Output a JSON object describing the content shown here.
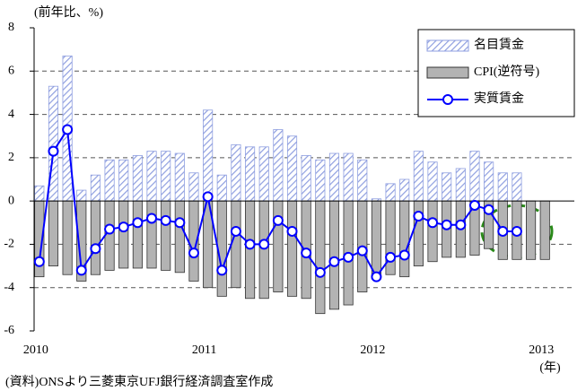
{
  "chart_data": {
    "type": "bar_line",
    "y_label": "(前年比、%)",
    "x_unit": "(年)",
    "source": "(資料)ONSより三菱東京UFJ銀行経済調査室作成",
    "categories": [
      "2010",
      null,
      null,
      null,
      null,
      null,
      null,
      null,
      null,
      null,
      null,
      null,
      "2011",
      null,
      null,
      null,
      null,
      null,
      null,
      null,
      null,
      null,
      null,
      null,
      "2012",
      null,
      null,
      null,
      null,
      null,
      null,
      null,
      null,
      null,
      null,
      null,
      "2013"
    ],
    "series": [
      {
        "name": "名目賃金",
        "color": "#8f9fe0",
        "kind": "bar",
        "values": [
          0.7,
          5.3,
          6.7,
          0.5,
          1.2,
          1.9,
          1.9,
          2.1,
          2.3,
          2.3,
          2.2,
          1.3,
          4.2,
          1.2,
          2.6,
          2.5,
          2.5,
          3.3,
          3.0,
          2.1,
          1.9,
          2.2,
          2.2,
          1.9,
          0.1,
          0.8,
          1.0,
          2.3,
          1.8,
          1.3,
          1.5,
          2.3,
          1.8,
          1.3,
          1.3,
          null,
          null
        ]
      },
      {
        "name": "CPI(逆符号)",
        "color": "#b3b3b3",
        "kind": "bar",
        "values": [
          -3.5,
          -3.0,
          -3.4,
          -3.7,
          -3.4,
          -3.2,
          -3.1,
          -3.1,
          -3.1,
          -3.2,
          -3.3,
          -3.7,
          -4.0,
          -4.4,
          -4.0,
          -4.5,
          -4.5,
          -4.2,
          -4.4,
          -4.5,
          -5.2,
          -5.0,
          -4.8,
          -4.2,
          -3.6,
          -3.4,
          -3.5,
          -3.0,
          -2.8,
          -2.6,
          -2.6,
          -2.5,
          -2.2,
          -2.7,
          -2.7,
          -2.7,
          -2.7
        ]
      },
      {
        "name": "実質賃金",
        "color": "#0000ff",
        "kind": "line",
        "values": [
          -2.8,
          2.3,
          3.3,
          -3.2,
          -2.2,
          -1.3,
          -1.2,
          -1.0,
          -0.8,
          -0.9,
          -1.0,
          -2.4,
          0.2,
          -3.2,
          -1.4,
          -2.0,
          -2.0,
          -0.9,
          -1.4,
          -2.4,
          -3.3,
          -2.8,
          -2.6,
          -2.3,
          -3.5,
          -2.6,
          -2.5,
          -0.7,
          -1.0,
          -1.1,
          -1.1,
          -0.2,
          -0.4,
          -1.4,
          -1.4,
          null,
          null
        ]
      }
    ],
    "ylim": [
      -6,
      8
    ],
    "yticks": [
      -6,
      -4,
      -2,
      0,
      2,
      4,
      6,
      8
    ],
    "grid": true,
    "legend": "upper right"
  }
}
